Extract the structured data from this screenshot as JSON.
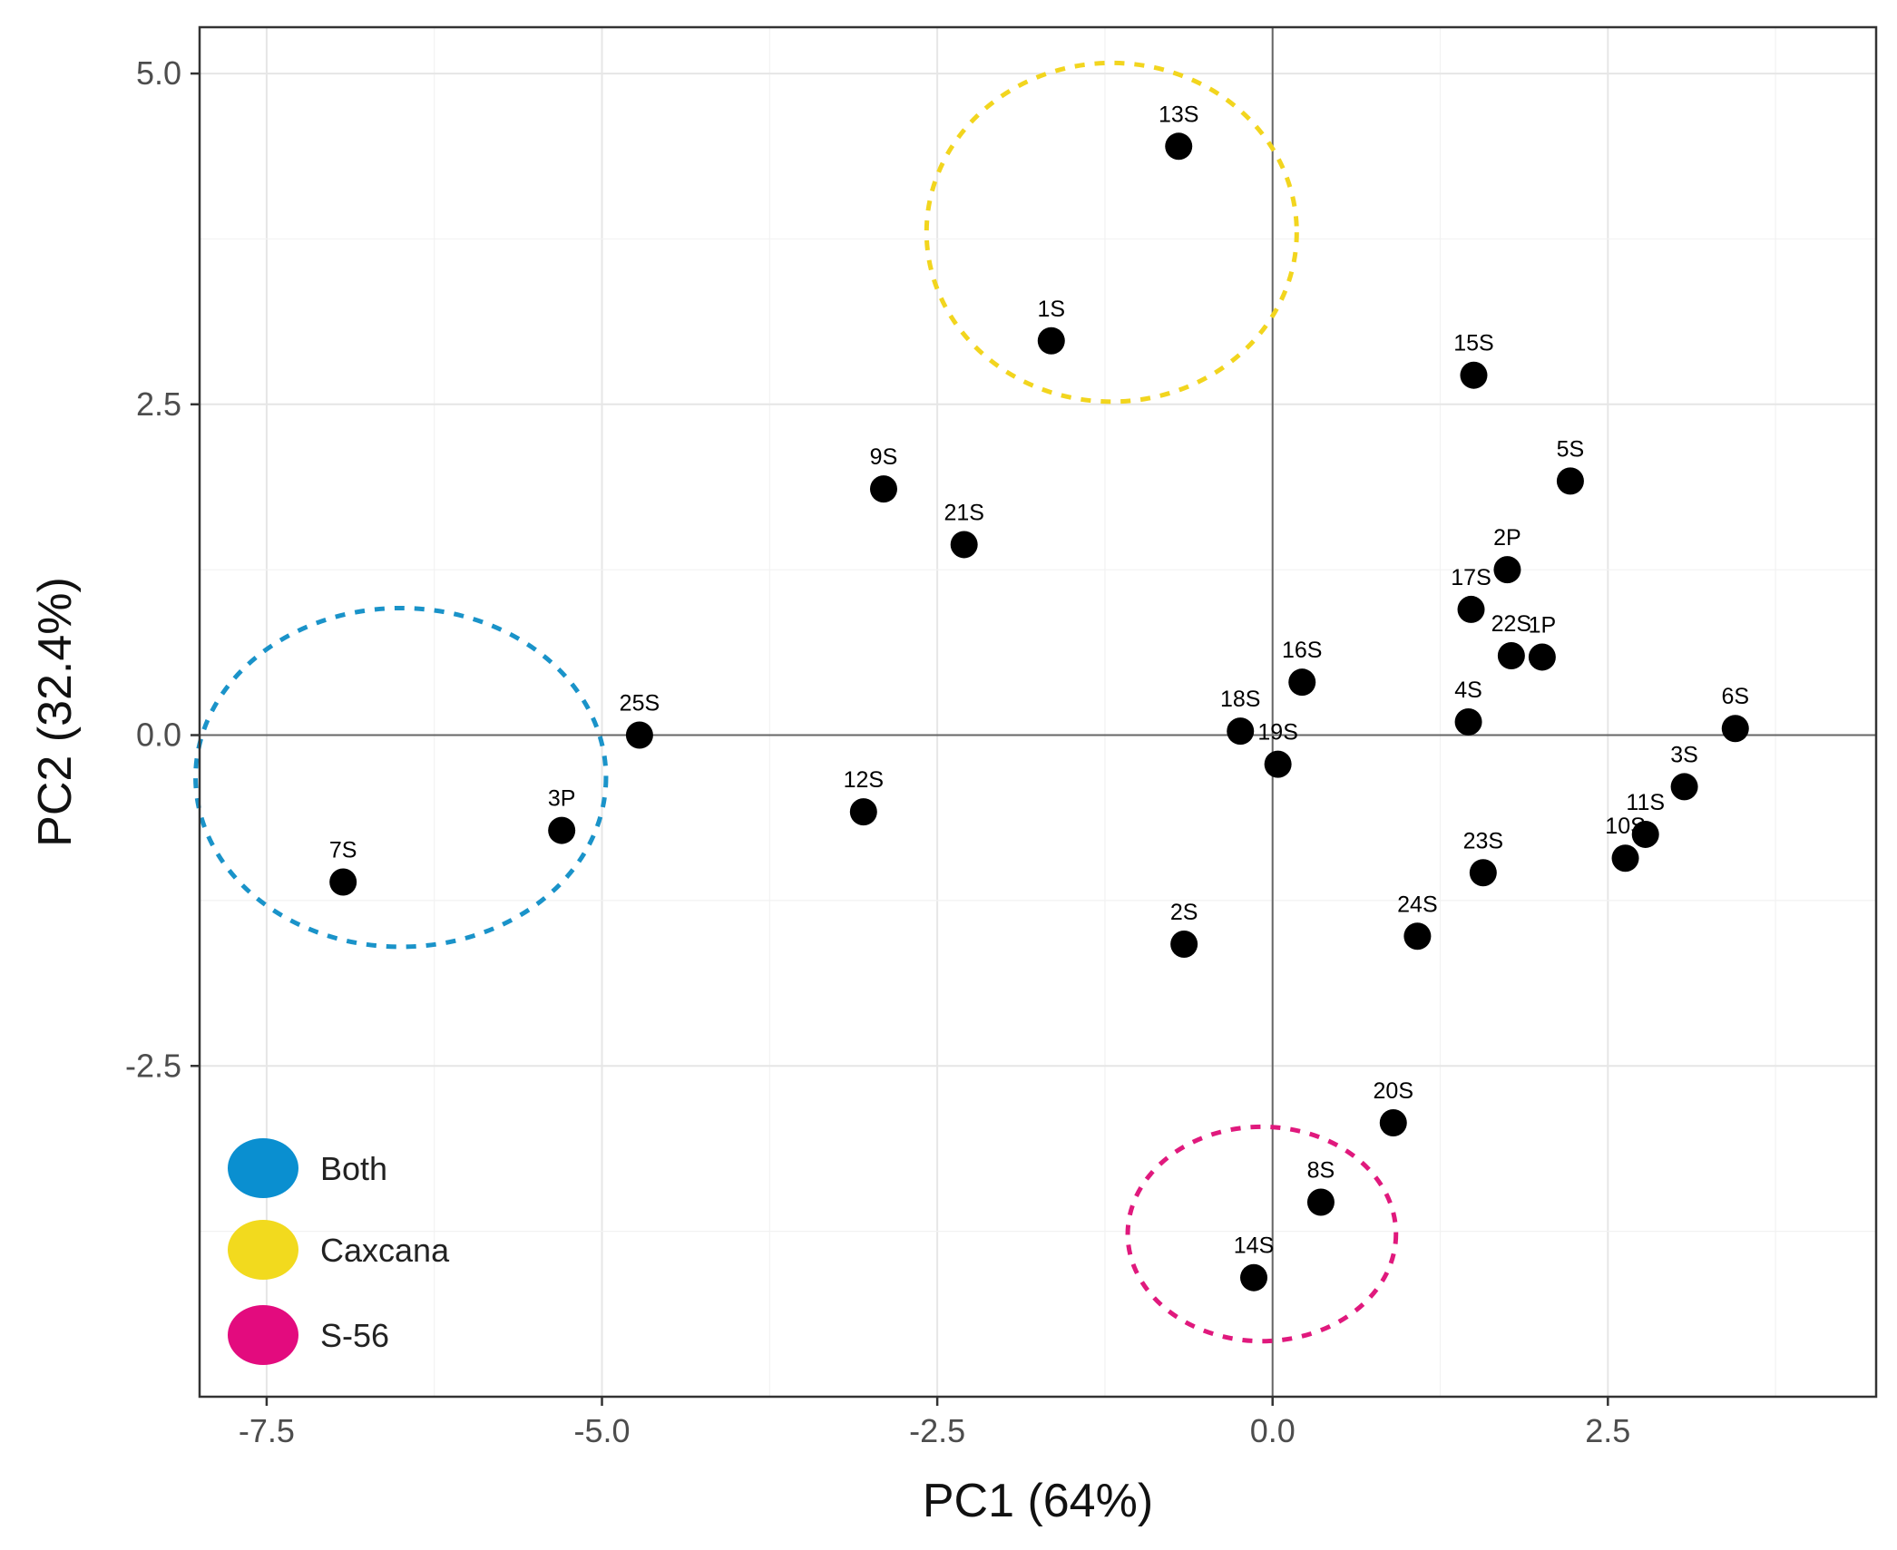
{
  "chart_data": {
    "type": "scatter",
    "title": "",
    "xlabel": "PC1 (64%)",
    "ylabel": "PC2 (32.4%)",
    "xlim": [
      -8.0,
      4.5
    ],
    "ylim": [
      -5.0,
      5.35
    ],
    "x_ticks": [
      -7.5,
      -5.0,
      -2.5,
      0.0,
      2.5
    ],
    "x_tick_labels": [
      "-7.5",
      "-5.0",
      "-2.5",
      "0.0",
      "2.5"
    ],
    "y_ticks": [
      -2.5,
      0.0,
      2.5,
      5.0
    ],
    "y_tick_labels": [
      "-2.5",
      "0.0",
      "2.5",
      "5.0"
    ],
    "grid": true,
    "reference_lines": [
      {
        "axis": "x",
        "value": 0
      },
      {
        "axis": "y",
        "value": 0
      }
    ],
    "point_color": "#000000",
    "points": [
      {
        "label": "13S",
        "x": -0.7,
        "y": 4.45
      },
      {
        "label": "1S",
        "x": -1.65,
        "y": 2.98
      },
      {
        "label": "15S",
        "x": 1.5,
        "y": 2.72
      },
      {
        "label": "5S",
        "x": 2.22,
        "y": 1.92
      },
      {
        "label": "9S",
        "x": -2.9,
        "y": 1.86
      },
      {
        "label": "21S",
        "x": -2.3,
        "y": 1.44
      },
      {
        "label": "2P",
        "x": 1.75,
        "y": 1.25
      },
      {
        "label": "17S",
        "x": 1.48,
        "y": 0.95
      },
      {
        "label": "22S",
        "x": 1.78,
        "y": 0.6
      },
      {
        "label": "1P",
        "x": 2.01,
        "y": 0.59
      },
      {
        "label": "16S",
        "x": 0.22,
        "y": 0.4
      },
      {
        "label": "4S",
        "x": 1.46,
        "y": 0.1
      },
      {
        "label": "6S",
        "x": 3.45,
        "y": 0.05
      },
      {
        "label": "18S",
        "x": -0.24,
        "y": 0.03
      },
      {
        "label": "25S",
        "x": -4.72,
        "y": 0.0
      },
      {
        "label": "19S",
        "x": 0.04,
        "y": -0.22
      },
      {
        "label": "3S",
        "x": 3.07,
        "y": -0.39
      },
      {
        "label": "12S",
        "x": -3.05,
        "y": -0.58
      },
      {
        "label": "3P",
        "x": -5.3,
        "y": -0.72
      },
      {
        "label": "11S",
        "x": 2.78,
        "y": -0.75
      },
      {
        "label": "10S",
        "x": 2.63,
        "y": -0.93
      },
      {
        "label": "23S",
        "x": 1.57,
        "y": -1.04
      },
      {
        "label": "7S",
        "x": -6.93,
        "y": -1.11
      },
      {
        "label": "24S",
        "x": 1.08,
        "y": -1.52
      },
      {
        "label": "2S",
        "x": -0.66,
        "y": -1.58
      },
      {
        "label": "20S",
        "x": 0.9,
        "y": -2.93
      },
      {
        "label": "8S",
        "x": 0.36,
        "y": -3.53
      },
      {
        "label": "14S",
        "x": -0.14,
        "y": -4.1
      }
    ],
    "groups": [
      {
        "name": "Both",
        "color": "#1a93c9",
        "center": [
          -6.5,
          -0.32
        ],
        "radius_x": 1.53,
        "radius_y": 1.28
      },
      {
        "name": "Caxcana",
        "color": "#f2d51e",
        "center": [
          -1.2,
          3.8
        ],
        "radius_x": 1.38,
        "radius_y": 1.28
      },
      {
        "name": "S-56",
        "color": "#e0197d",
        "center": [
          -0.08,
          -3.77
        ],
        "radius_x": 1.0,
        "radius_y": 0.81
      }
    ],
    "legend_position": "bottom-left",
    "legend": [
      {
        "label": "Both",
        "color": "#0a8fd0"
      },
      {
        "label": "Caxcana",
        "color": "#f2da1e"
      },
      {
        "label": "S-56",
        "color": "#e30b7e"
      }
    ]
  }
}
